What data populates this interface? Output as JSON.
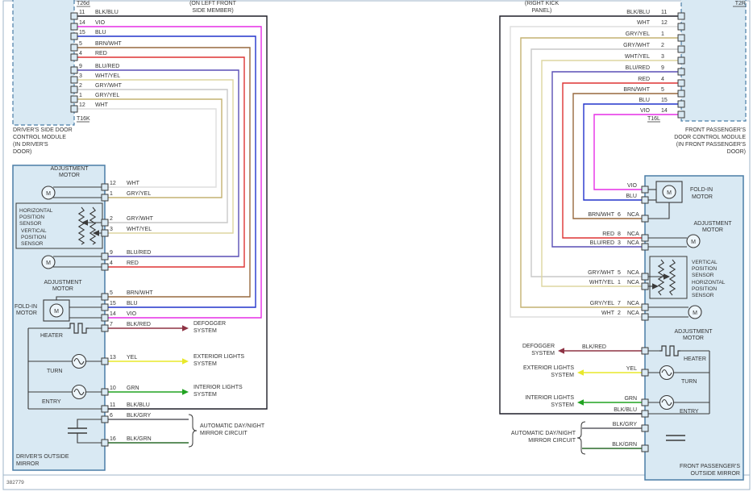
{
  "page": {
    "footer_number": "382779",
    "background": "#ffffff",
    "border_color": "#9fb6c9",
    "box_fill": "#d9e9f3",
    "box_stroke": "#4a7da6",
    "text_color": "#333333"
  },
  "wire_colors": {
    "BLK/BLU": "#1e1e28",
    "VIO": "#e62ee6",
    "BLU": "#2233cc",
    "BRN/WHT": "#97693f",
    "RED": "#dd3333",
    "BLU/RED": "#5a4fb5",
    "WHT/YEL": "#ddd6a0",
    "GRY/WHT": "#c9c9c9",
    "GRY/YEL": "#c4b272",
    "WHT": "#dedede",
    "BLK/RED": "#8e3344",
    "YEL": "#e8e82a",
    "GRN": "#21a321",
    "BLK/GRY": "#5d5d64",
    "BLK/GRN": "#2c6b2c"
  },
  "left": {
    "connector_top": "T26d",
    "location_lines": [
      "(ON LEFT FRONT",
      "SIDE MEMBER)"
    ],
    "connector_bottom": "T16K",
    "module_name_lines": [
      "DRIVER'S SIDE DOOR",
      "CONTROL MODULE",
      "(IN DRIVER'S",
      "DOOR)"
    ],
    "module_pins": [
      {
        "num": "11",
        "color": "BLK/BLU"
      },
      {
        "num": "14",
        "color": "VIO"
      },
      {
        "num": "15",
        "color": "BLU"
      },
      {
        "num": "5",
        "color": "BRN/WHT"
      },
      {
        "num": "4",
        "color": "RED"
      },
      {
        "num": "9",
        "color": "BLU/RED"
      },
      {
        "num": "3",
        "color": "WHT/YEL"
      },
      {
        "num": "2",
        "color": "GRY/WHT"
      },
      {
        "num": "1",
        "color": "GRY/YEL"
      },
      {
        "num": "12",
        "color": "WHT"
      }
    ],
    "mirror_name_lines": [
      "DRIVER'S OUTSIDE",
      "MIRROR"
    ],
    "mirror_pins": [
      {
        "num": "12",
        "color": "WHT"
      },
      {
        "num": "1",
        "color": "GRY/YEL"
      },
      {
        "num": "2",
        "color": "GRY/WHT"
      },
      {
        "num": "3",
        "color": "WHT/YEL"
      },
      {
        "num": "9",
        "color": "BLU/RED"
      },
      {
        "num": "4",
        "color": "RED"
      },
      {
        "num": "5",
        "color": "BRN/WHT"
      },
      {
        "num": "15",
        "color": "BLU"
      },
      {
        "num": "14",
        "color": "VIO"
      },
      {
        "num": "7",
        "color": "BLK/RED"
      },
      {
        "num": "13",
        "color": "YEL"
      },
      {
        "num": "10",
        "color": "GRN"
      },
      {
        "num": "11",
        "color": "BLK/BLU"
      },
      {
        "num": "6",
        "color": "BLK/GRY"
      },
      {
        "num": "16",
        "color": "BLK/GRN"
      }
    ],
    "components": {
      "adj_top": [
        "ADJUSTMENT",
        "MOTOR"
      ],
      "h_sensor": [
        "HORIZONTAL",
        "POSITION",
        "SENSOR"
      ],
      "v_sensor": [
        "VERTICAL",
        "POSITION",
        "SENSOR"
      ],
      "adj_bottom": [
        "ADJUSTMENT",
        "MOTOR"
      ],
      "fold_in": [
        "FOLD-IN",
        "MOTOR"
      ],
      "heater": "HEATER",
      "turn": "TURN",
      "entry": "ENTRY",
      "motor_letter": "M"
    },
    "systems": {
      "defogger": [
        "DEFOGGER",
        "SYSTEM"
      ],
      "exterior": [
        "EXTERIOR LIGHTS",
        "SYSTEM"
      ],
      "interior": [
        "INTERIOR LIGHTS",
        "SYSTEM"
      ],
      "auto": [
        "AUTOMATIC DAY/NIGHT",
        "MIRROR CIRCUIT"
      ]
    }
  },
  "right": {
    "connector_top": "T2R",
    "location_lines": [
      "(RIGHT KICK",
      "PANEL)"
    ],
    "connector_bottom": "T16L",
    "module_name_lines": [
      "FRONT PASSENGER'S",
      "DOOR CONTROL MODULE",
      "(IN FRONT PASSENGER'S",
      "DOOR)"
    ],
    "module_pins": [
      {
        "num": "11",
        "color": "BLK/BLU"
      },
      {
        "num": "12",
        "color": "WHT"
      },
      {
        "num": "1",
        "color": "GRY/YEL"
      },
      {
        "num": "2",
        "color": "GRY/WHT"
      },
      {
        "num": "3",
        "color": "WHT/YEL"
      },
      {
        "num": "9",
        "color": "BLU/RED"
      },
      {
        "num": "4",
        "color": "RED"
      },
      {
        "num": "5",
        "color": "BRN/WHT"
      },
      {
        "num": "15",
        "color": "BLU"
      },
      {
        "num": "14",
        "color": "VIO"
      }
    ],
    "mirror_name_lines": [
      "FRONT PASSENGER'S",
      "OUTSIDE MIRROR"
    ],
    "mirror_pins": [
      {
        "color": "VIO"
      },
      {
        "color": "BLU"
      },
      {
        "num": "6",
        "color": "BRN/WHT",
        "nca": "NCA"
      },
      {
        "num": "8",
        "color": "RED",
        "nca": "NCA"
      },
      {
        "num": "3",
        "color": "BLU/RED",
        "nca": "NCA"
      },
      {
        "num": "5",
        "color": "GRY/WHT",
        "nca": "NCA"
      },
      {
        "num": "1",
        "color": "WHT/YEL",
        "nca": "NCA"
      },
      {
        "num": "7",
        "color": "GRY/YEL",
        "nca": "NCA"
      },
      {
        "num": "2",
        "color": "WHT",
        "nca": "NCA"
      },
      {
        "color": "BLK/RED"
      },
      {
        "color": "YEL"
      },
      {
        "color": "GRN"
      },
      {
        "color": "BLK/BLU"
      },
      {
        "color": "BLK/GRY"
      },
      {
        "color": "BLK/GRN"
      }
    ],
    "components": {
      "fold_in": [
        "FOLD-IN",
        "MOTOR"
      ],
      "adj_top": [
        "ADJUSTMENT",
        "MOTOR"
      ],
      "v_sensor": [
        "VERTICAL",
        "POSITION",
        "SENSOR"
      ],
      "h_sensor": [
        "HORIZONTAL",
        "POSITION",
        "SENSOR"
      ],
      "adj_bottom": [
        "ADJUSTMENT",
        "MOTOR"
      ],
      "heater": "HEATER",
      "turn": "TURN",
      "entry": "ENTRY",
      "motor_letter": "M"
    },
    "systems": {
      "defogger": [
        "DEFOGGER",
        "SYSTEM"
      ],
      "exterior": [
        "EXTERIOR LIGHTS",
        "SYSTEM"
      ],
      "interior": [
        "INTERIOR LIGHTS",
        "SYSTEM"
      ],
      "auto": [
        "AUTOMATIC DAY/NIGHT",
        "MIRROR CIRCUIT"
      ]
    }
  }
}
